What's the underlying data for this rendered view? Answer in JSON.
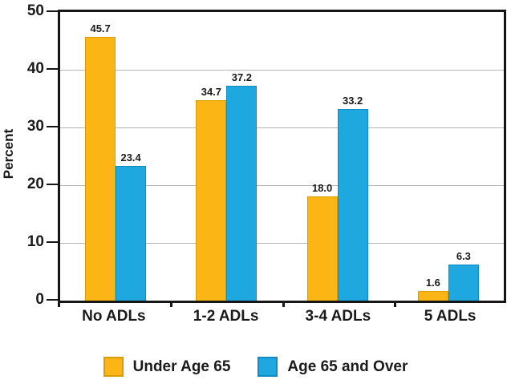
{
  "chart_data": {
    "type": "bar",
    "title": "",
    "xlabel": "",
    "ylabel": "Percent",
    "ylim": [
      0,
      50
    ],
    "yticks": [
      0,
      10,
      20,
      30,
      40,
      50
    ],
    "grid": true,
    "legend_position": "bottom",
    "categories": [
      "No ADLs",
      "1-2 ADLs",
      "3-4 ADLs",
      "5 ADLs"
    ],
    "series": [
      {
        "name": "Under Age 65",
        "values": [
          "45.7",
          "34.7",
          "18.0",
          "1.6"
        ],
        "color": "#FBB615",
        "border_color": "#DE9B00"
      },
      {
        "name": "Age 65 and Over",
        "values": [
          "23.4",
          "37.2",
          "33.2",
          "6.3"
        ],
        "color": "#1FA8E0",
        "border_color": "#0E8CC4"
      }
    ],
    "colors": {
      "frame": "#161616",
      "gridline": "#b4b4b4",
      "text": "#1a1a1a",
      "background": "#ffffff"
    }
  }
}
